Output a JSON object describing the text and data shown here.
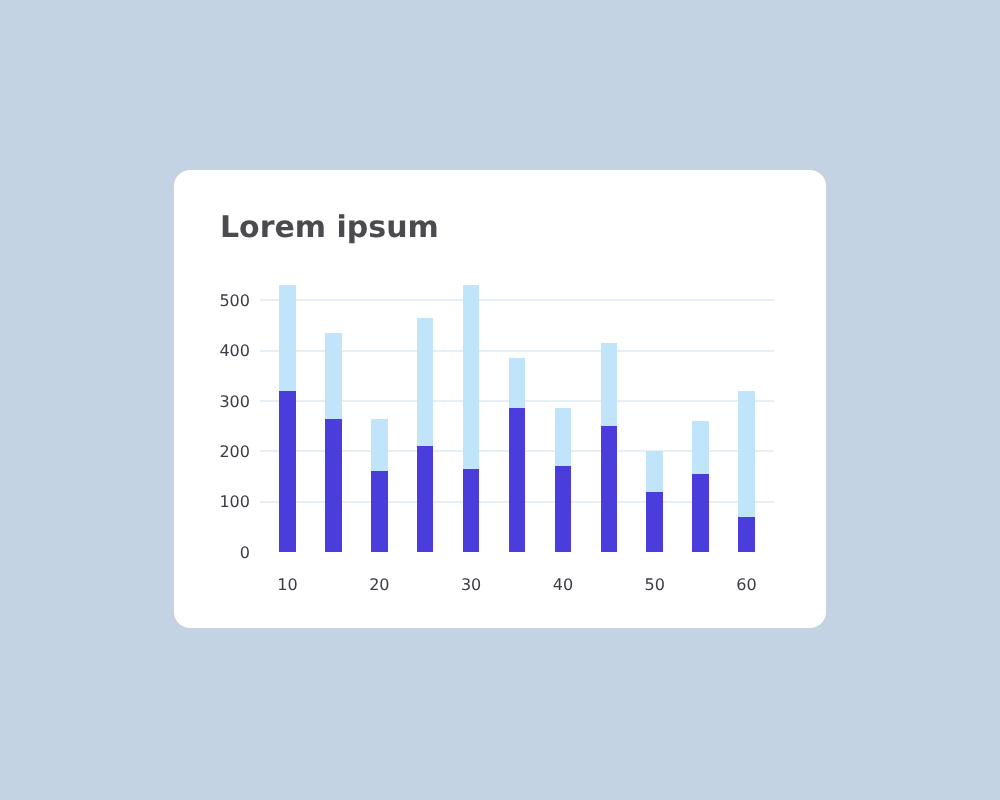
{
  "chart_data": {
    "type": "bar",
    "title": "Lorem ipsum",
    "x": [
      10,
      15,
      20,
      25,
      30,
      35,
      40,
      45,
      50,
      55,
      60
    ],
    "series": [
      {
        "color": "#4b3ddb",
        "values": [
          320,
          265,
          160,
          210,
          165,
          285,
          170,
          250,
          120,
          155,
          70
        ]
      },
      {
        "color": "#c0e4f9",
        "values": [
          210,
          170,
          105,
          255,
          365,
          100,
          115,
          165,
          80,
          105,
          250
        ]
      }
    ],
    "stacked": true,
    "xlim": [
      7,
      63
    ],
    "xticks": [
      10,
      20,
      30,
      40,
      50,
      60
    ],
    "ylim": [
      0,
      540
    ],
    "yticks": [
      0,
      100,
      200,
      300,
      400,
      500
    ],
    "grid": "y"
  }
}
